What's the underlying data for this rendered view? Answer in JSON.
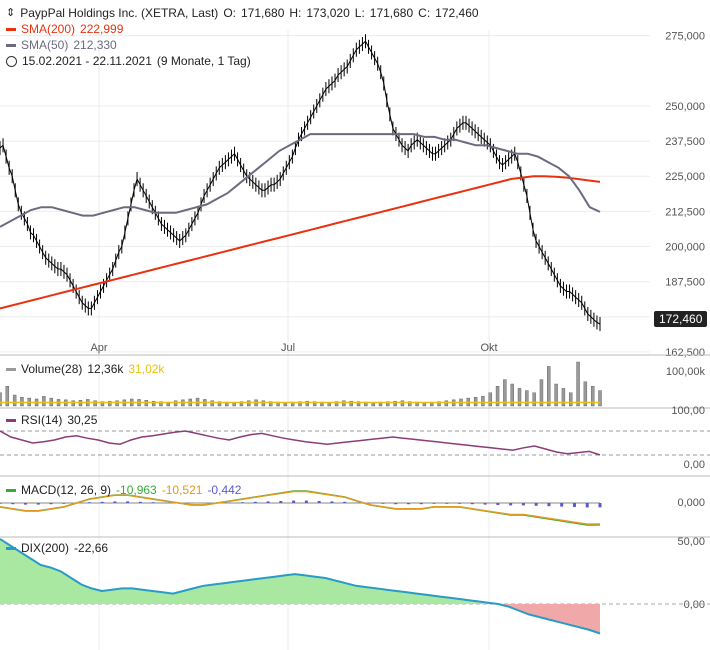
{
  "header": {
    "title": "PaypPal Holdings Inc. (XETRA, Last)",
    "ohlc": {
      "o_label": "O:",
      "o": "171,680",
      "h_label": "H:",
      "h": "173,020",
      "l_label": "L:",
      "l": "171,680",
      "c_label": "C:",
      "c": "172,460"
    },
    "sma200_label": "SMA(200)",
    "sma200_value": "222,999",
    "sma50_label": "SMA(50)",
    "sma50_value": "212,330",
    "range": "15.02.2021 - 22.11.2021",
    "range_detail": "(9 Monate, 1 Tag)"
  },
  "colors": {
    "candle": "#000000",
    "sma200": "#e8320f",
    "sma50": "#6b6b80",
    "volume_bar": "#9a9a9a",
    "volume_avg": "#e8c20f",
    "rsi": "#8a3d78",
    "macd": "#3aa83a",
    "macd_signal": "#e09a20",
    "macd_hist": "#5a5ad0",
    "dix_line": "#2a9ac8",
    "dix_pos": "#a8e8a0",
    "dix_neg": "#f0a8a8"
  },
  "last_price_badge": "172,460",
  "panels": {
    "volume": {
      "label": "Volume(28)",
      "v1": "12,36k",
      "v2": "31,02k",
      "tick": "100,00k"
    },
    "rsi": {
      "label": "RSI(14)",
      "value": "30,25",
      "ticks": [
        "100,00",
        "0,00"
      ]
    },
    "macd": {
      "label": "MACD(12, 26, 9)",
      "v1": "-10,963",
      "v2": "-10,521",
      "v3": "-0,442",
      "tick": "0,000"
    },
    "dix": {
      "label": "DIX(200)",
      "value": "-22,66",
      "ticks": [
        "50,00",
        "0,00"
      ]
    }
  },
  "chart_data": {
    "type": "line",
    "title": "PaypPal Holdings Inc. (XETRA, Last)",
    "x_labels": [
      "Apr",
      "Jul",
      "Okt"
    ],
    "y_ticks": [
      "275,000",
      "250,000",
      "237,500",
      "225,000",
      "212,500",
      "200,000",
      "187,500",
      "175,000",
      "162,500"
    ],
    "ylim": [
      162.5,
      277
    ],
    "series": [
      {
        "name": "Close",
        "values": [
          235,
          236,
          232,
          228,
          225,
          220,
          215,
          212,
          210,
          208,
          205,
          204,
          202,
          200,
          198,
          196,
          195,
          194,
          193,
          192,
          192,
          191,
          190,
          188,
          186,
          184,
          182,
          180,
          179,
          178,
          178,
          180,
          182,
          184,
          186,
          188,
          190,
          192,
          195,
          198,
          200,
          205,
          210,
          215,
          220,
          224,
          222,
          220,
          218,
          216,
          214,
          212,
          210,
          208,
          207,
          206,
          205,
          204,
          203,
          202,
          203,
          204,
          206,
          208,
          210,
          212,
          215,
          218,
          220,
          222,
          224,
          226,
          228,
          229,
          230,
          231,
          232,
          233,
          231,
          229,
          227,
          225,
          224,
          223,
          222,
          221,
          220,
          220,
          221,
          222,
          222,
          223,
          224,
          226,
          228,
          230,
          232,
          235,
          238,
          240,
          242,
          244,
          246,
          248,
          250,
          252,
          254,
          256,
          257,
          258,
          259,
          261,
          262,
          263,
          264,
          266,
          268,
          270,
          271,
          272,
          273,
          271,
          269,
          267,
          265,
          262,
          258,
          252,
          247,
          242,
          240,
          238,
          236,
          235,
          234,
          236,
          237,
          238,
          237,
          236,
          235,
          234,
          233,
          233,
          234,
          235,
          236,
          237,
          238,
          240,
          242,
          243,
          244,
          244,
          243,
          242,
          241,
          240,
          239,
          238,
          237,
          236,
          234,
          232,
          230,
          229,
          230,
          231,
          232,
          233,
          230,
          226,
          222,
          218,
          212,
          206,
          202,
          200,
          198,
          196,
          194,
          192,
          190,
          188,
          186,
          185,
          184,
          184,
          183,
          182,
          181,
          180,
          178,
          176,
          175,
          174,
          173,
          172.46
        ]
      },
      {
        "name": "SMA(200)",
        "values": [
          178,
          179,
          180,
          181,
          182,
          183,
          184,
          185,
          186,
          187,
          188,
          189,
          190,
          191,
          192,
          193,
          194,
          195,
          196,
          197,
          198,
          199,
          200,
          201,
          202,
          203,
          204,
          205,
          206,
          207,
          208,
          209,
          210,
          211,
          212,
          213,
          214,
          215,
          216,
          217,
          218,
          219,
          220,
          221,
          222,
          223,
          224,
          224.5,
          225,
          225,
          224.8,
          224.5,
          224,
          223.5,
          223
        ]
      },
      {
        "name": "SMA(50)",
        "values": [
          207,
          209,
          211,
          213,
          214,
          214,
          213,
          212,
          211,
          211,
          212,
          213,
          214,
          214,
          213,
          212,
          212,
          212,
          213,
          214,
          215,
          217,
          219,
          222,
          225,
          228,
          231,
          234,
          236,
          238,
          240,
          240,
          240,
          240,
          240,
          240,
          240,
          240,
          240,
          240,
          240,
          239,
          239,
          238,
          238,
          237,
          236,
          236,
          235,
          234,
          233,
          233,
          232,
          230,
          228,
          225,
          220,
          214,
          212.33
        ]
      }
    ],
    "volume": {
      "values": [
        30,
        45,
        25,
        20,
        18,
        16,
        22,
        18,
        15,
        14,
        12,
        13,
        15,
        12,
        10,
        11,
        12,
        14,
        16,
        15,
        13,
        11,
        10,
        9,
        12,
        14,
        16,
        18,
        15,
        12,
        10,
        9,
        8,
        10,
        12,
        14,
        12,
        10,
        9,
        8,
        9,
        10,
        11,
        10,
        9,
        8,
        10,
        12,
        11,
        10,
        9,
        8,
        9,
        10,
        11,
        12,
        10,
        9,
        8,
        9,
        10,
        12,
        14,
        16,
        18,
        20,
        22,
        30,
        45,
        60,
        50,
        40,
        35,
        30,
        60,
        90,
        50,
        40,
        30,
        100,
        55,
        45,
        35
      ]
    },
    "rsi": {
      "values": [
        70,
        60,
        55,
        50,
        52,
        55,
        60,
        62,
        58,
        55,
        50,
        48,
        55,
        60,
        62,
        65,
        68,
        70,
        66,
        62,
        58,
        55,
        60,
        64,
        66,
        62,
        58,
        55,
        52,
        50,
        48,
        50,
        52,
        54,
        56,
        58,
        60,
        58,
        56,
        54,
        52,
        50,
        48,
        46,
        44,
        42,
        40,
        38,
        42,
        45,
        40,
        35,
        32,
        34,
        36,
        30.25
      ]
    },
    "macd": {
      "values": [
        -2,
        -3,
        -4,
        -4,
        -3,
        -2,
        0,
        2,
        3,
        4,
        4,
        3,
        2,
        1,
        0,
        -1,
        -1,
        0,
        1,
        2,
        3,
        4,
        5,
        6,
        6,
        5,
        4,
        3,
        1,
        -1,
        -2,
        -3,
        -3,
        -3,
        -2,
        -2,
        -2,
        -3,
        -4,
        -5,
        -6,
        -6,
        -7,
        -8,
        -9,
        -10,
        -11,
        -10.963
      ]
    },
    "dix": {
      "values": [
        50,
        45,
        40,
        35,
        30,
        28,
        25,
        20,
        15,
        12,
        10,
        11,
        12,
        12,
        11,
        10,
        9,
        8,
        10,
        12,
        14,
        15,
        16,
        17,
        18,
        19,
        20,
        21,
        22,
        23,
        22,
        21,
        20,
        18,
        16,
        14,
        13,
        12,
        11,
        10,
        9,
        8,
        7,
        6,
        5,
        4,
        3,
        2,
        1,
        0,
        -2,
        -5,
        -8,
        -10,
        -12,
        -14,
        -16,
        -18,
        -20,
        -22.66
      ]
    }
  }
}
